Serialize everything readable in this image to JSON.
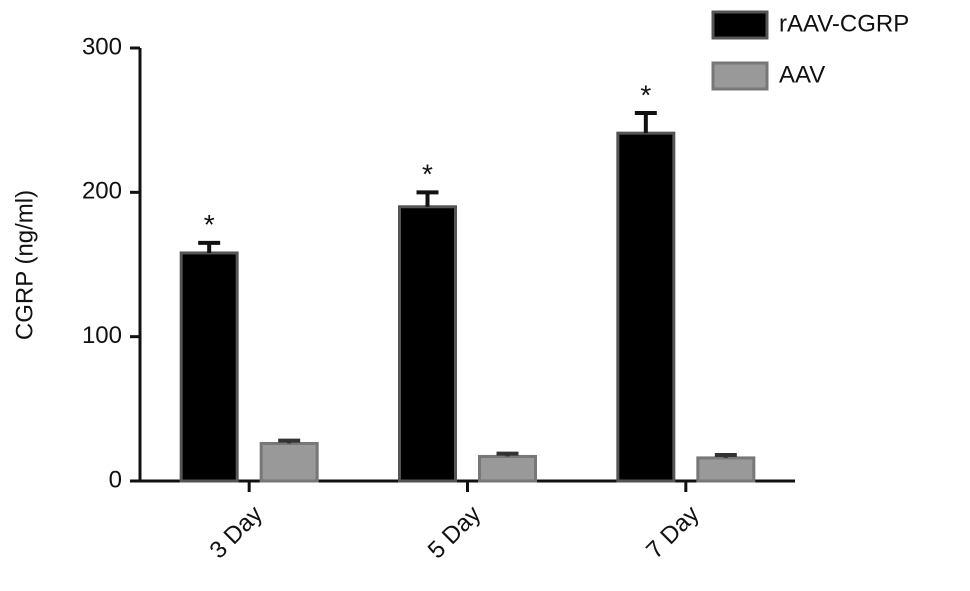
{
  "chart_data": {
    "type": "bar",
    "y_label": "CGRP (ng/ml)",
    "categories": [
      "3 Day",
      "5 Day",
      "7 Day"
    ],
    "series": [
      {
        "name": "rAAV-CGRP",
        "color": "#000000",
        "values": [
          158,
          190,
          241
        ],
        "errors": [
          7,
          10,
          14
        ]
      },
      {
        "name": "AAV",
        "color": "#999999",
        "values": [
          26,
          17,
          16
        ],
        "errors": [
          2,
          2,
          2
        ]
      }
    ],
    "annotations": [
      "*",
      "*",
      "*"
    ],
    "ylim": [
      0,
      300
    ],
    "yticks": [
      0,
      100,
      200,
      300
    ],
    "grid": false
  }
}
